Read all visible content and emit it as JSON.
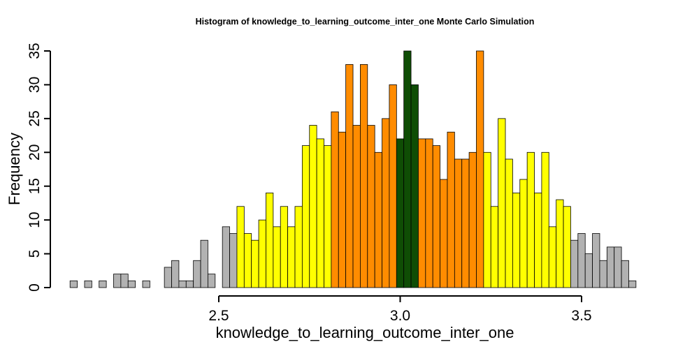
{
  "chart_data": {
    "type": "bar",
    "title": "Histogram of  knowledge_to_learning_outcome_inter_one  Monte Carlo Simulation",
    "xlabel": "knowledge_to_learning_outcome_inter_one",
    "ylabel": "Frequency",
    "xlim": [
      2.1,
      3.7
    ],
    "ylim": [
      0,
      35
    ],
    "bin_width": 0.02,
    "bin_start": 2.09,
    "x_ticks": [
      {
        "value": 2.5,
        "label": "2.5"
      },
      {
        "value": 3.0,
        "label": "3.0"
      },
      {
        "value": 3.5,
        "label": "3.5"
      }
    ],
    "y_ticks": [
      {
        "value": 0,
        "label": "0"
      },
      {
        "value": 5,
        "label": "5"
      },
      {
        "value": 10,
        "label": "10"
      },
      {
        "value": 15,
        "label": "15"
      },
      {
        "value": 20,
        "label": "20"
      },
      {
        "value": 25,
        "label": "25"
      },
      {
        "value": 30,
        "label": "30"
      },
      {
        "value": 35,
        "label": "35"
      }
    ],
    "grid": false,
    "colors": {
      "gray": "#b2b2b2",
      "yellow": "#ffff00",
      "orange": "#ff8c00",
      "darkgreen": "#0f4d05"
    },
    "values": [
      1,
      0,
      1,
      0,
      1,
      0,
      2,
      2,
      1,
      0,
      1,
      0,
      0,
      3,
      4,
      1,
      1,
      4,
      7,
      2,
      0,
      9,
      8,
      12,
      8,
      7,
      10,
      14,
      9,
      12,
      9,
      12,
      21,
      24,
      22,
      21,
      26,
      23,
      33,
      24,
      33,
      24,
      20,
      25,
      30,
      22,
      35,
      30,
      22,
      22,
      21,
      16,
      23,
      19,
      19,
      20,
      35,
      20,
      12,
      25,
      19,
      14,
      16,
      20,
      14,
      20,
      9,
      13,
      12,
      7,
      8,
      5,
      8,
      4,
      6,
      6,
      4,
      1
    ],
    "bar_colors": [
      "gray",
      "gray",
      "gray",
      "gray",
      "gray",
      "gray",
      "gray",
      "gray",
      "gray",
      "gray",
      "gray",
      "gray",
      "gray",
      "gray",
      "gray",
      "gray",
      "gray",
      "gray",
      "gray",
      "gray",
      "gray",
      "gray",
      "gray",
      "yellow",
      "yellow",
      "yellow",
      "yellow",
      "yellow",
      "yellow",
      "yellow",
      "yellow",
      "yellow",
      "yellow",
      "yellow",
      "yellow",
      "yellow",
      "orange",
      "orange",
      "orange",
      "orange",
      "orange",
      "orange",
      "orange",
      "orange",
      "orange",
      "darkgreen",
      "darkgreen",
      "darkgreen",
      "orange",
      "orange",
      "orange",
      "orange",
      "orange",
      "orange",
      "orange",
      "orange",
      "orange",
      "yellow",
      "yellow",
      "yellow",
      "yellow",
      "yellow",
      "yellow",
      "yellow",
      "yellow",
      "yellow",
      "yellow",
      "yellow",
      "yellow",
      "gray",
      "gray",
      "gray",
      "gray",
      "gray",
      "gray",
      "gray",
      "gray",
      "gray"
    ]
  }
}
